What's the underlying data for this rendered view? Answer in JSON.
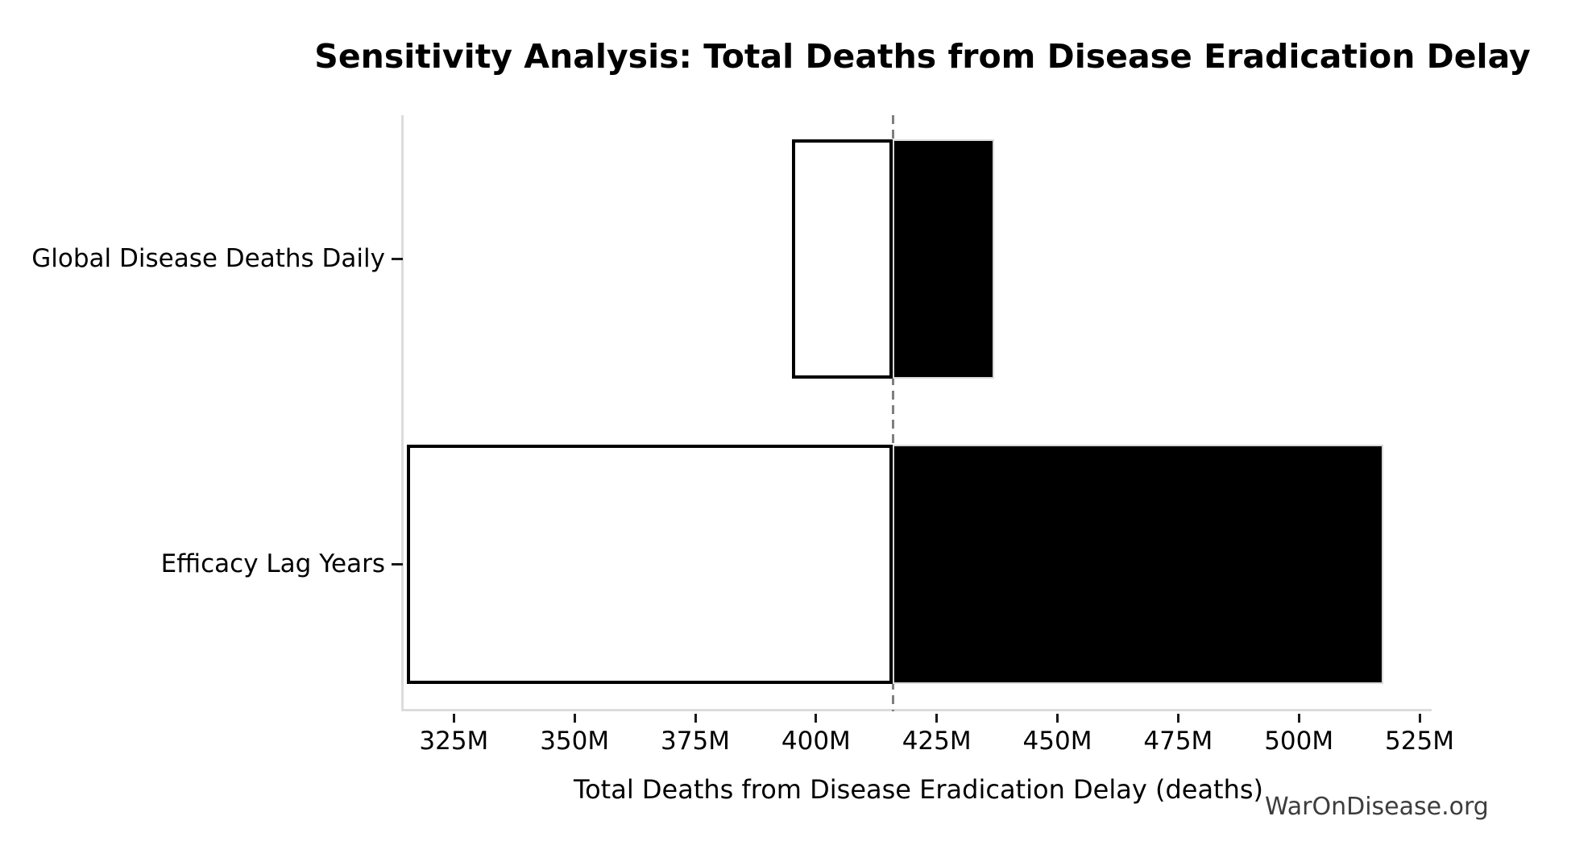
{
  "page": {
    "background": "#ffffff"
  },
  "watermark": "WarOnDisease.org",
  "chart_data": {
    "type": "bar",
    "subtype": "tornado-sensitivity",
    "orientation": "horizontal",
    "title": "Sensitivity Analysis: Total Deaths from Disease Eradication Delay",
    "xlabel": "Total Deaths from Disease Eradication Delay (deaths)",
    "ylabel": "",
    "categories": [
      "Global Disease Deaths Daily",
      "Efficacy Lag Years"
    ],
    "baseline_value_m": 415.9,
    "series": [
      {
        "name": "Global Disease Deaths Daily",
        "low_m": 395.1,
        "high_m": 436.9
      },
      {
        "name": "Efficacy Lag Years",
        "low_m": 315.3,
        "high_m": 517.5
      }
    ],
    "x_ticks_m": [
      325,
      350,
      375,
      400,
      425,
      450,
      475,
      500,
      525
    ],
    "x_tick_labels": [
      "325M",
      "350M",
      "375M",
      "400M",
      "425M",
      "450M",
      "475M",
      "500M",
      "525M"
    ],
    "xlim_m": [
      314.6,
      527.5
    ],
    "grid": false,
    "legend": null,
    "colors": {
      "bar_low_fill": "#ffffff",
      "bar_low_edge": "#000000",
      "bar_high_fill": "#000000",
      "bar_high_edge": "#d9d9d9",
      "baseline_dash": "#7f7f7f",
      "spine": "#dcdcdc",
      "tick": "#1a1a1a",
      "text": "#000000",
      "watermark_text": "#3d3d3d"
    }
  }
}
